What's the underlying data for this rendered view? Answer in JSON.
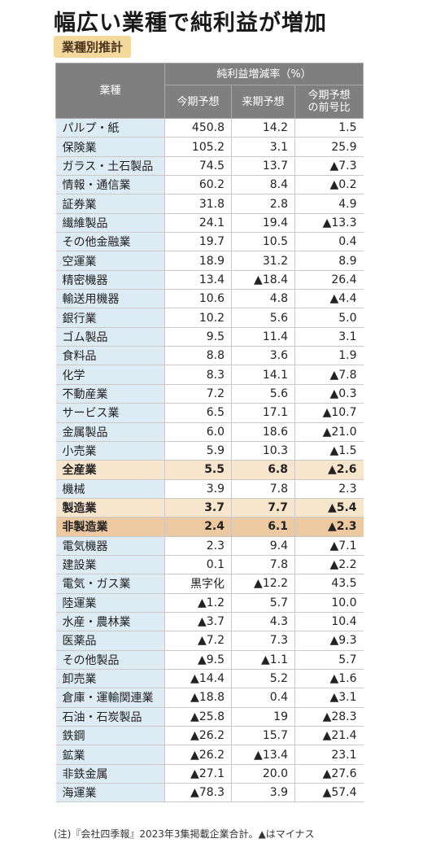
{
  "title": "幅広い業種で純利益が増加",
  "subtitle": "業種別推計",
  "header": {
    "industry": "業種",
    "group": "純利益増減率（%）",
    "cols": [
      "今期予想",
      "来期予想",
      "今期予想の前号比"
    ]
  },
  "rows": [
    {
      "name": "パルプ・紙",
      "v1": "450.8",
      "v2": "14.2",
      "v3": "1.5"
    },
    {
      "name": "保険業",
      "v1": "105.2",
      "v2": "3.1",
      "v3": "25.9"
    },
    {
      "name": "ガラス・土石製品",
      "v1": "74.5",
      "v2": "13.7",
      "v3": "▲7.3"
    },
    {
      "name": "情報・通信業",
      "v1": "60.2",
      "v2": "8.4",
      "v3": "▲0.2"
    },
    {
      "name": "証券業",
      "v1": "31.8",
      "v2": "2.8",
      "v3": "4.9"
    },
    {
      "name": "繊維製品",
      "v1": "24.1",
      "v2": "19.4",
      "v3": "▲13.3"
    },
    {
      "name": "その他金融業",
      "v1": "19.7",
      "v2": "10.5",
      "v3": "0.4"
    },
    {
      "name": "空運業",
      "v1": "18.9",
      "v2": "31.2",
      "v3": "8.9"
    },
    {
      "name": "精密機器",
      "v1": "13.4",
      "v2": "▲18.4",
      "v3": "26.4"
    },
    {
      "name": "輸送用機器",
      "v1": "10.6",
      "v2": "4.8",
      "v3": "▲4.4"
    },
    {
      "name": "銀行業",
      "v1": "10.2",
      "v2": "5.6",
      "v3": "5.0"
    },
    {
      "name": "ゴム製品",
      "v1": "9.5",
      "v2": "11.4",
      "v3": "3.1"
    },
    {
      "name": "食料品",
      "v1": "8.8",
      "v2": "3.6",
      "v3": "1.9"
    },
    {
      "name": "化学",
      "v1": "8.3",
      "v2": "14.1",
      "v3": "▲7.8"
    },
    {
      "name": "不動産業",
      "v1": "7.2",
      "v2": "5.6",
      "v3": "▲0.3"
    },
    {
      "name": "サービス業",
      "v1": "6.5",
      "v2": "17.1",
      "v3": "▲10.7"
    },
    {
      "name": "金属製品",
      "v1": "6.0",
      "v2": "18.6",
      "v3": "▲21.0"
    },
    {
      "name": "小売業",
      "v1": "5.9",
      "v2": "10.3",
      "v3": "▲1.5"
    },
    {
      "name": "全産業",
      "v1": "5.5",
      "v2": "6.8",
      "v3": "▲2.6",
      "style": "hl-light"
    },
    {
      "name": "機械",
      "v1": "3.9",
      "v2": "7.8",
      "v3": "2.3"
    },
    {
      "name": "製造業",
      "v1": "3.7",
      "v2": "7.7",
      "v3": "▲5.4",
      "style": "hl-light"
    },
    {
      "name": "非製造業",
      "v1": "2.4",
      "v2": "6.1",
      "v3": "▲2.3",
      "style": "hl-dark"
    },
    {
      "name": "電気機器",
      "v1": "2.3",
      "v2": "9.4",
      "v3": "▲7.1"
    },
    {
      "name": "建設業",
      "v1": "0.1",
      "v2": "7.8",
      "v3": "▲2.2"
    },
    {
      "name": "電気・ガス業",
      "v1": "黒字化",
      "v2": "▲12.2",
      "v3": "43.5"
    },
    {
      "name": "陸運業",
      "v1": "▲1.2",
      "v2": "5.7",
      "v3": "10.0"
    },
    {
      "name": "水産・農林業",
      "v1": "▲3.7",
      "v2": "4.3",
      "v3": "10.4"
    },
    {
      "name": "医薬品",
      "v1": "▲7.2",
      "v2": "7.3",
      "v3": "▲9.3"
    },
    {
      "name": "その他製品",
      "v1": "▲9.5",
      "v2": "▲1.1",
      "v3": "5.7"
    },
    {
      "name": "卸売業",
      "v1": "▲14.4",
      "v2": "5.2",
      "v3": "▲1.6"
    },
    {
      "name": "倉庫・運輸関連業",
      "v1": "▲18.8",
      "v2": "0.4",
      "v3": "▲3.1"
    },
    {
      "name": "石油・石炭製品",
      "v1": "▲25.8",
      "v2": "19",
      "v3": "▲28.3"
    },
    {
      "name": "鉄鋼",
      "v1": "▲26.2",
      "v2": "15.7",
      "v3": "▲21.4"
    },
    {
      "name": "鉱業",
      "v1": "▲26.2",
      "v2": "▲13.4",
      "v3": "23.1"
    },
    {
      "name": "非鉄金属",
      "v1": "▲27.1",
      "v2": "20.0",
      "v3": "▲27.6"
    },
    {
      "name": "海運業",
      "v1": "▲78.3",
      "v2": "3.9",
      "v3": "▲57.4"
    }
  ],
  "note": "(注)『会社四季報』2023年3集掲載企業合計。▲はマイナス"
}
